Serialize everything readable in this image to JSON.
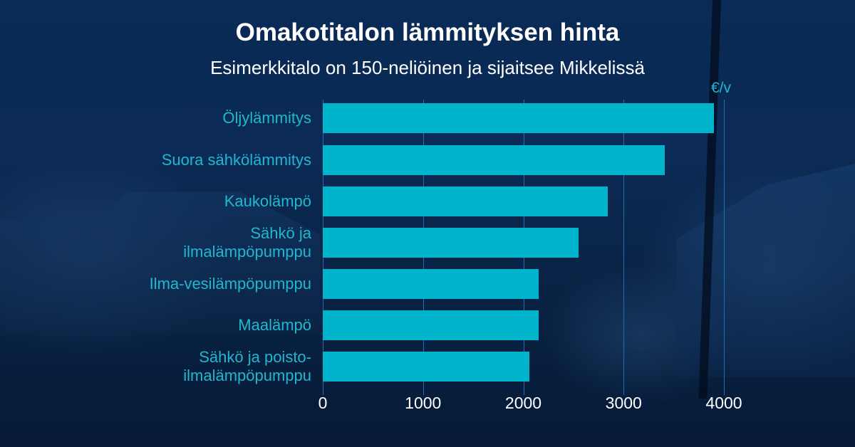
{
  "header": {
    "title": "Omakotitalon lämmityksen hinta",
    "subtitle": "Esimerkkitalo on 150-neliöinen ja sijaitsee Mikkelissä"
  },
  "axis": {
    "unit": "€/v",
    "ticks": [
      "0",
      "1000",
      "2000",
      "3000",
      "4000"
    ]
  },
  "colors": {
    "bar": "#00b4cc",
    "label": "#1fb8cf",
    "background": "#0a2a55",
    "gridline": "#1f6fb0"
  },
  "chart_data": {
    "type": "bar",
    "orientation": "horizontal",
    "title": "Omakotitalon lämmityksen hinta",
    "subtitle": "Esimerkkitalo on 150-neliöinen ja sijaitsee Mikkelissä",
    "xlabel": "€/v",
    "ylabel": "",
    "xlim": [
      0,
      4000
    ],
    "xticks": [
      0,
      1000,
      2000,
      3000,
      4000
    ],
    "grid": true,
    "legend": "none",
    "categories": [
      "Öljylämmitys",
      "Suora sähkölämmitys",
      "Kaukolämpö",
      "Sähkö ja ilmalämpöpumppu",
      "Ilma-vesilämpöpumppu",
      "Maalämpö",
      "Sähkö ja poisto-ilmalämpöpumppu"
    ],
    "values": [
      3900,
      3410,
      2840,
      2550,
      2150,
      2150,
      2060
    ]
  },
  "rows": [
    {
      "label_lines": [
        "Öljylämmitys"
      ],
      "value": 3900
    },
    {
      "label_lines": [
        "Suora sähkölämmitys"
      ],
      "value": 3410
    },
    {
      "label_lines": [
        "Kaukolämpö"
      ],
      "value": 2840
    },
    {
      "label_lines": [
        "Sähkö ja",
        "ilmalämpöpumppu"
      ],
      "value": 2550
    },
    {
      "label_lines": [
        "Ilma-vesilämpöpumppu"
      ],
      "value": 2150
    },
    {
      "label_lines": [
        "Maalämpö"
      ],
      "value": 2150
    },
    {
      "label_lines": [
        "Sähkö ja poisto-",
        "ilmalämpöpumppu"
      ],
      "value": 2060
    }
  ]
}
